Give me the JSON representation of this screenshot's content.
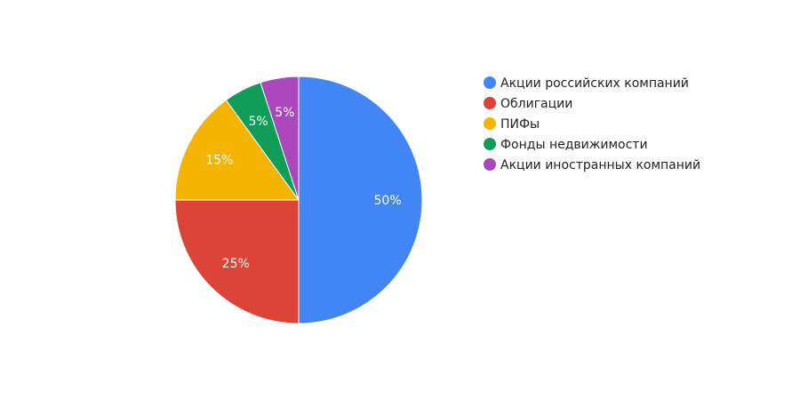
{
  "chart_data": {
    "type": "pie",
    "title": "",
    "start_angle_deg": 0,
    "direction": "clockwise",
    "legend_position": "right",
    "slices": [
      {
        "label": "Акции российских компаний",
        "value": 50,
        "percent_label": "50%",
        "color": "#4285f4"
      },
      {
        "label": "Облигации",
        "value": 25,
        "percent_label": "25%",
        "color": "#db4437"
      },
      {
        "label": "ПИФы",
        "value": 15,
        "percent_label": "15%",
        "color": "#f4b400"
      },
      {
        "label": "Фонды недвижимости",
        "value": 5,
        "percent_label": "5%",
        "color": "#0f9d58"
      },
      {
        "label": "Акции иностранных компаний",
        "value": 5,
        "percent_label": "5%",
        "color": "#ab47bc"
      }
    ]
  }
}
